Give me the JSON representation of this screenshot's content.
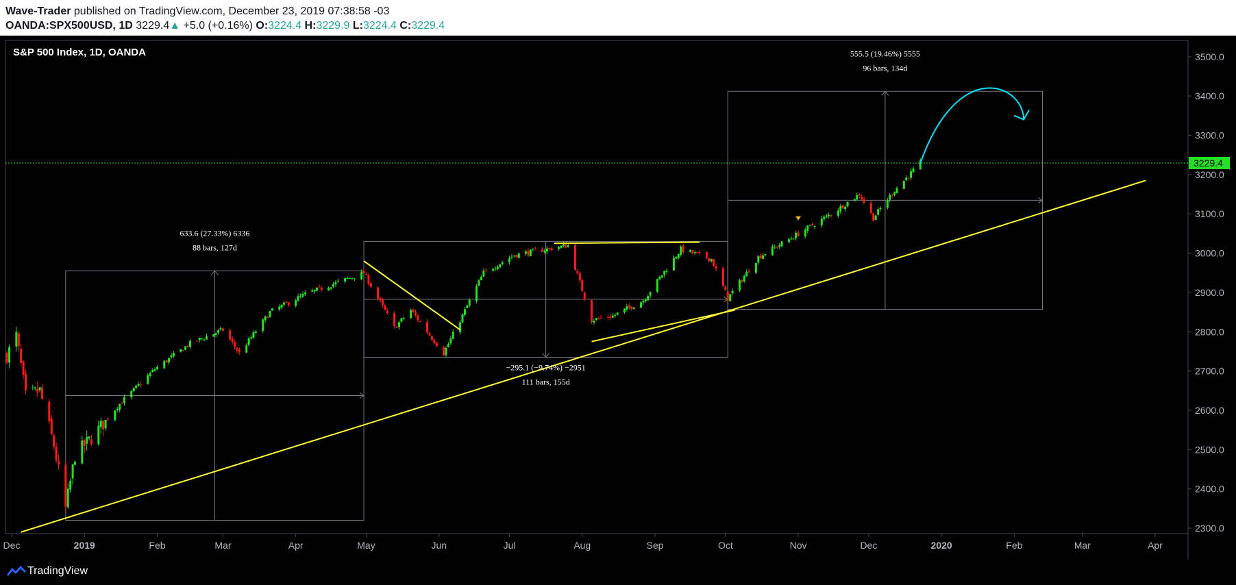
{
  "header": {
    "author": "Wave-Trader",
    "published_text": " published on TradingView.com, December 23, 2019 07:38:58 -03",
    "symbol": "OANDA:SPX500USD, 1D",
    "last": "3229.4",
    "change_arrow": "▲",
    "change": "+5.0 (+0.16%)",
    "o_label": "O:",
    "o_val": "3224.4",
    "h_label": "H:",
    "h_val": "3229.9",
    "l_label": "L:",
    "l_val": "3224.4",
    "c_label": "C:",
    "c_val": "3229.4"
  },
  "footer": {
    "brand": "TradingView",
    "logo_icon": "tradingview-logo-icon"
  },
  "colors": {
    "up": "#26e026",
    "down": "#ff1a1a",
    "trendline": "#ffff33",
    "projection": "#00e5ff",
    "price_line": "#26e026",
    "box": "#787b86"
  },
  "chart_data": {
    "type": "candlestick",
    "title": "S&P 500 Index, 1D, OANDA",
    "ylim": [
      2280,
      3560
    ],
    "y_ticks": [
      "2300.0",
      "2400.0",
      "2500.0",
      "2600.0",
      "2700.0",
      "2800.0",
      "2900.0",
      "3000.0",
      "3100.0",
      "3200.0",
      "3300.0",
      "3400.0",
      "3500.0"
    ],
    "x_ticks": [
      {
        "label": "Dec",
        "date": "2018-12-01",
        "bold": false
      },
      {
        "label": "2019",
        "date": "2019-01-01",
        "bold": true
      },
      {
        "label": "Feb",
        "date": "2019-02-01",
        "bold": false
      },
      {
        "label": "Mar",
        "date": "2019-03-01",
        "bold": false
      },
      {
        "label": "Apr",
        "date": "2019-04-01",
        "bold": false
      },
      {
        "label": "May",
        "date": "2019-05-01",
        "bold": false
      },
      {
        "label": "Jun",
        "date": "2019-06-01",
        "bold": false
      },
      {
        "label": "Jul",
        "date": "2019-07-01",
        "bold": false
      },
      {
        "label": "Aug",
        "date": "2019-08-01",
        "bold": false
      },
      {
        "label": "Sep",
        "date": "2019-09-01",
        "bold": false
      },
      {
        "label": "Oct",
        "date": "2019-10-01",
        "bold": false
      },
      {
        "label": "Nov",
        "date": "2019-11-01",
        "bold": false
      },
      {
        "label": "Dec",
        "date": "2019-12-01",
        "bold": false
      },
      {
        "label": "2020",
        "date": "2020-01-01",
        "bold": true
      },
      {
        "label": "Feb",
        "date": "2020-02-01",
        "bold": false
      },
      {
        "label": "Mar",
        "date": "2020-03-01",
        "bold": false
      },
      {
        "label": "Apr",
        "date": "2020-04-01",
        "bold": false
      }
    ],
    "last_price": 3229.4,
    "last_price_label": "3229.4",
    "price_path": [
      {
        "date": "2018-11-29",
        "close": 2740
      },
      {
        "date": "2018-12-03",
        "close": 2790
      },
      {
        "date": "2018-12-07",
        "close": 2635
      },
      {
        "date": "2018-12-13",
        "close": 2650
      },
      {
        "date": "2018-12-19",
        "close": 2510
      },
      {
        "date": "2018-12-24",
        "close": 2350
      },
      {
        "date": "2018-12-28",
        "close": 2485
      },
      {
        "date": "2019-01-04",
        "close": 2530
      },
      {
        "date": "2019-01-15",
        "close": 2610
      },
      {
        "date": "2019-01-31",
        "close": 2705
      },
      {
        "date": "2019-02-15",
        "close": 2770
      },
      {
        "date": "2019-03-01",
        "close": 2805
      },
      {
        "date": "2019-03-08",
        "close": 2745
      },
      {
        "date": "2019-03-21",
        "close": 2850
      },
      {
        "date": "2019-04-05",
        "close": 2895
      },
      {
        "date": "2019-04-30",
        "close": 2950
      },
      {
        "date": "2019-05-13",
        "close": 2810
      },
      {
        "date": "2019-05-20",
        "close": 2855
      },
      {
        "date": "2019-06-03",
        "close": 2745
      },
      {
        "date": "2019-06-20",
        "close": 2950
      },
      {
        "date": "2019-07-03",
        "close": 2995
      },
      {
        "date": "2019-07-26",
        "close": 3020
      },
      {
        "date": "2019-08-05",
        "close": 2830
      },
      {
        "date": "2019-08-14",
        "close": 2840
      },
      {
        "date": "2019-08-27",
        "close": 2880
      },
      {
        "date": "2019-09-12",
        "close": 3010
      },
      {
        "date": "2019-09-25",
        "close": 2985
      },
      {
        "date": "2019-10-02",
        "close": 2885
      },
      {
        "date": "2019-10-15",
        "close": 2990
      },
      {
        "date": "2019-10-28",
        "close": 3035
      },
      {
        "date": "2019-11-15",
        "close": 3100
      },
      {
        "date": "2019-11-27",
        "close": 3150
      },
      {
        "date": "2019-12-03",
        "close": 3090
      },
      {
        "date": "2019-12-12",
        "close": 3160
      },
      {
        "date": "2019-12-23",
        "close": 3229
      }
    ],
    "annotations": [
      {
        "line1": "633.6 (27.33%) 6336",
        "line2": "88 bars, 127d"
      },
      {
        "line1": "−295.1 (−9.74%) −2951",
        "line2": "111 bars, 155d"
      },
      {
        "line1": "555.5 (19.46%) 5555",
        "line2": "96 bars, 134d"
      }
    ],
    "measure_boxes": [
      {
        "start": "2018-12-24",
        "end": "2019-04-30",
        "low": 2320,
        "high": 2955,
        "arrow": "up"
      },
      {
        "start": "2019-04-30",
        "end": "2019-10-02",
        "low": 2735,
        "high": 3030,
        "arrow": "down"
      },
      {
        "start": "2019-10-02",
        "end": "2020-02-13",
        "low": 2857,
        "high": 3412,
        "arrow": "up"
      }
    ],
    "trendlines": [
      {
        "from": {
          "date": "2018-12-05",
          "price": 2290
        },
        "to": {
          "date": "2020-03-28",
          "price": 3185
        }
      },
      {
        "from": {
          "date": "2019-04-30",
          "price": 2980
        },
        "to": {
          "date": "2019-06-10",
          "price": 2805
        }
      },
      {
        "from": {
          "date": "2019-07-20",
          "price": 3025
        },
        "to": {
          "date": "2019-09-20",
          "price": 3028
        }
      },
      {
        "from": {
          "date": "2019-08-05",
          "price": 2775
        },
        "to": {
          "date": "2019-10-05",
          "price": 2855
        }
      }
    ]
  }
}
